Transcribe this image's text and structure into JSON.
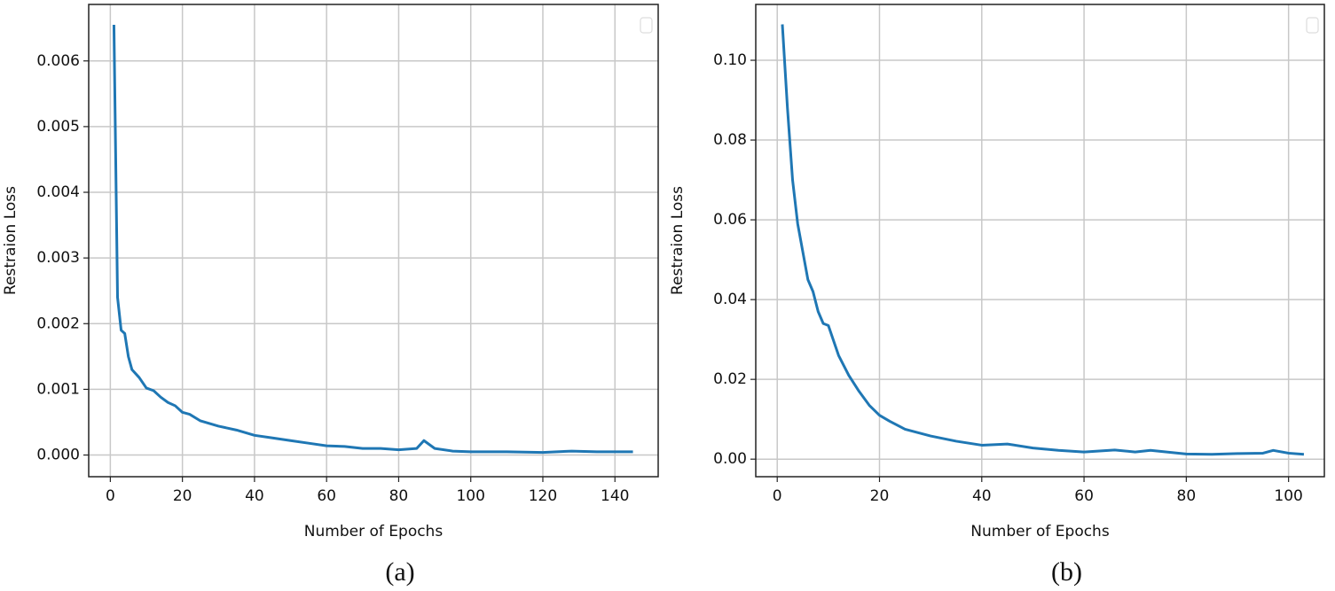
{
  "chart_data": [
    {
      "type": "line",
      "xlabel": "Number of Epochs",
      "ylabel": "Restraion Loss",
      "caption": "(a)",
      "color": "#1f77b4",
      "grid": true,
      "x": [
        1,
        2,
        3,
        4,
        5,
        6,
        8,
        10,
        12,
        14,
        16,
        18,
        20,
        22,
        25,
        30,
        35,
        40,
        45,
        50,
        55,
        60,
        65,
        70,
        75,
        80,
        85,
        87,
        90,
        95,
        100,
        110,
        120,
        128,
        135,
        140,
        145
      ],
      "values": [
        0.00655,
        0.0024,
        0.0019,
        0.00185,
        0.0015,
        0.0013,
        0.00118,
        0.00102,
        0.00098,
        0.00088,
        0.0008,
        0.00075,
        0.00065,
        0.00062,
        0.00052,
        0.00044,
        0.00038,
        0.0003,
        0.00026,
        0.00022,
        0.00018,
        0.00014,
        0.00013,
        0.0001,
        0.0001,
        8e-05,
        0.0001,
        0.00022,
        0.0001,
        6e-05,
        5e-05,
        5e-05,
        4e-05,
        6e-05,
        5e-05,
        5e-05,
        5e-05
      ],
      "xlim": [
        -6,
        152
      ],
      "ylim": [
        -0.00033,
        0.00686
      ],
      "xticks": [
        0,
        20,
        40,
        60,
        80,
        100,
        120,
        140
      ],
      "yticks": [
        {
          "value": 0,
          "label": "0.000"
        },
        0.001,
        0.002,
        0.003,
        0.004,
        0.005,
        0.006
      ]
    },
    {
      "type": "line",
      "xlabel": "Number of Epochs",
      "ylabel": "Restraion Loss",
      "caption": "(b)",
      "color": "#1f77b4",
      "grid": true,
      "x": [
        1,
        2,
        3,
        4,
        5,
        6,
        7,
        8,
        9,
        10,
        12,
        14,
        16,
        18,
        20,
        22,
        25,
        30,
        35,
        40,
        45,
        50,
        55,
        60,
        66,
        70,
        73,
        80,
        85,
        90,
        95,
        97,
        100,
        103
      ],
      "values": [
        0.109,
        0.088,
        0.07,
        0.059,
        0.052,
        0.045,
        0.042,
        0.037,
        0.034,
        0.0335,
        0.026,
        0.021,
        0.017,
        0.0135,
        0.011,
        0.0095,
        0.0075,
        0.0058,
        0.0045,
        0.0035,
        0.0038,
        0.0028,
        0.0022,
        0.0018,
        0.0023,
        0.0018,
        0.0022,
        0.0013,
        0.0012,
        0.0014,
        0.0015,
        0.0022,
        0.0015,
        0.0012
      ],
      "xlim": [
        -4.2,
        107
      ],
      "ylim": [
        -0.0044,
        0.114
      ],
      "xticks": [
        0,
        20,
        40,
        60,
        80,
        100
      ],
      "yticks": [
        {
          "value": 0,
          "label": "0.00"
        },
        0.02,
        0.04,
        0.06,
        0.08,
        {
          "value": 0.1,
          "label": "0.10"
        }
      ]
    }
  ]
}
